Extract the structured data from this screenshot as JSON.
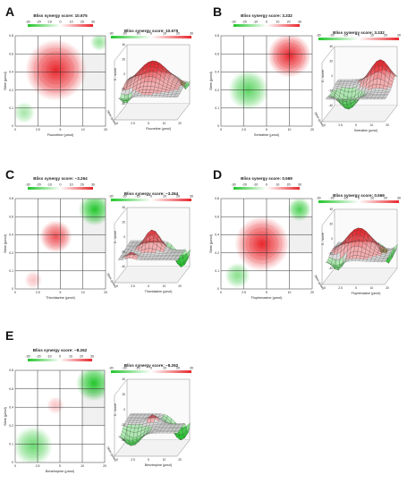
{
  "chart_data": [
    {
      "type": "heatmap",
      "panel": "A",
      "title": "Bliss synergy score: 10.675",
      "title3d": "Bliss synergy score: 10.675",
      "xlabel": "Fluoxetine (µmol)",
      "ylabel": "Stem (µmol)",
      "xlabel3d": "Fluoxetine (µmol)",
      "ylabel3d": "Stem (µmol)",
      "zlabel3d": "δ - score",
      "colorbar_ticks": [
        "-30",
        "-20",
        "-10",
        "0",
        "10",
        "20",
        "30"
      ],
      "x_ticks": [
        "0",
        "2.5",
        "5",
        "10",
        "20"
      ],
      "y_ticks": [
        "0",
        "0.1",
        "0.2",
        "0.4",
        "0.6",
        "0.8"
      ],
      "z_ticks": [
        "-40",
        "-20",
        "0",
        "20",
        "40"
      ],
      "blobs": [
        {
          "x": 0.45,
          "y": 0.62,
          "r": 0.34,
          "value": 30
        },
        {
          "x": 0.1,
          "y": 0.15,
          "r": 0.12,
          "value": -12
        },
        {
          "x": 0.93,
          "y": 0.93,
          "r": 0.1,
          "value": -14
        }
      ],
      "grey_cells": [
        [
          3,
          1
        ],
        [
          3,
          2
        ]
      ]
    },
    {
      "type": "heatmap",
      "panel": "B",
      "title": "Bliss synergy score: 3.332",
      "title3d": "Bliss synergy score: 3.332",
      "xlabel": "Sertraline (µmol)",
      "ylabel": "Stem (µmol)",
      "xlabel3d": "Sertraline (µmol)",
      "ylabel3d": "Stem (µmol)",
      "zlabel3d": "δ - score",
      "colorbar_ticks": [
        "-30",
        "-20",
        "-10",
        "0",
        "10",
        "20",
        "30"
      ],
      "x_ticks": [
        "0",
        "2.5",
        "5",
        "10",
        "20"
      ],
      "y_ticks": [
        "0",
        "0.1",
        "0.2",
        "0.4",
        "0.6",
        "0.8"
      ],
      "z_ticks": [
        "-40",
        "-20",
        "0",
        "20",
        "40"
      ],
      "blobs": [
        {
          "x": 0.75,
          "y": 0.78,
          "r": 0.24,
          "value": 30
        },
        {
          "x": 0.3,
          "y": 0.4,
          "r": 0.22,
          "value": -22
        }
      ],
      "grey_cells": []
    },
    {
      "type": "heatmap",
      "panel": "C",
      "title": "Bliss synergy score: −3.264",
      "title3d": "Bliss synergy score: −3.264",
      "xlabel": "Thioridazine (µmol)",
      "ylabel": "Stem (µmol)",
      "xlabel3d": "Thioridazine (µmol)",
      "ylabel3d": "Stem (µmol)",
      "zlabel3d": "δ - score",
      "colorbar_ticks": [
        "-30",
        "-20",
        "-10",
        "0",
        "10",
        "20",
        "30"
      ],
      "x_ticks": [
        "0",
        "2.5",
        "5",
        "10",
        "20"
      ],
      "y_ticks": [
        "0",
        "0.1",
        "0.2",
        "0.4",
        "0.6",
        "0.8"
      ],
      "z_ticks": [
        "-40",
        "-20",
        "0",
        "20",
        "40"
      ],
      "blobs": [
        {
          "x": 0.45,
          "y": 0.58,
          "r": 0.18,
          "value": 24
        },
        {
          "x": 0.88,
          "y": 0.88,
          "r": 0.18,
          "value": -30
        },
        {
          "x": 0.2,
          "y": 0.1,
          "r": 0.1,
          "value": 8
        }
      ],
      "grey_cells": [
        [
          3,
          1
        ],
        [
          3,
          2
        ]
      ]
    },
    {
      "type": "heatmap",
      "panel": "D",
      "title": "Bliss synergy score: 0.569",
      "title3d": "Bliss synergy score: 0.569",
      "xlabel": "Fluphenazine (µmol)",
      "ylabel": "Stem (µmol)",
      "xlabel3d": "Fluphenazine (µmol)",
      "ylabel3d": "Stem (µmol)",
      "zlabel3d": "δ - score",
      "colorbar_ticks": [
        "-30",
        "-20",
        "-10",
        "0",
        "10",
        "20",
        "30"
      ],
      "x_ticks": [
        "0",
        "2.5",
        "5",
        "10",
        "20"
      ],
      "y_ticks": [
        "0",
        "0.1",
        "0.2",
        "0.4",
        "0.6",
        "0.8"
      ],
      "z_ticks": [
        "-40",
        "-20",
        "0",
        "20",
        "40"
      ],
      "blobs": [
        {
          "x": 0.45,
          "y": 0.5,
          "r": 0.3,
          "value": 30
        },
        {
          "x": 0.86,
          "y": 0.88,
          "r": 0.13,
          "value": -24
        },
        {
          "x": 0.18,
          "y": 0.15,
          "r": 0.14,
          "value": -16
        }
      ],
      "grey_cells": [
        [
          3,
          1
        ],
        [
          3,
          2
        ]
      ]
    },
    {
      "type": "heatmap",
      "panel": "E",
      "title": "Bliss synergy score: −8.262",
      "title3d": "Bliss synergy score: −8.262",
      "xlabel": "Benztropine (µmol)",
      "ylabel": "Stem (µmol)",
      "xlabel3d": "Benztropine (µmol)",
      "ylabel3d": "Stem (µmol)",
      "zlabel3d": "δ - score",
      "colorbar_ticks": [
        "-30",
        "-20",
        "-10",
        "0",
        "10",
        "20",
        "30"
      ],
      "x_ticks": [
        "0",
        "2.5",
        "5",
        "10",
        "20"
      ],
      "y_ticks": [
        "0",
        "0.1",
        "0.2",
        "0.4",
        "0.6",
        "0.8"
      ],
      "z_ticks": [
        "-40",
        "-20",
        "0",
        "20",
        "40"
      ],
      "blobs": [
        {
          "x": 0.88,
          "y": 0.86,
          "r": 0.2,
          "value": -30
        },
        {
          "x": 0.2,
          "y": 0.18,
          "r": 0.22,
          "value": -20
        },
        {
          "x": 0.45,
          "y": 0.62,
          "r": 0.1,
          "value": 8
        }
      ],
      "grey_cells": [
        [
          3,
          1
        ],
        [
          3,
          2
        ]
      ]
    }
  ]
}
